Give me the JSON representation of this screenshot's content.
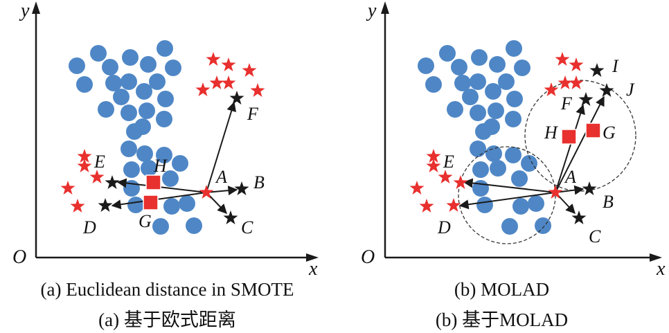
{
  "panels": [
    {
      "axis_y": "y",
      "axis_x": "x",
      "origin": "O",
      "labels": {
        "A": "A",
        "B": "B",
        "C": "C",
        "D": "D",
        "E": "E",
        "F": "F",
        "G": "G",
        "H": "H"
      },
      "caption_en": "(a) Euclidean distance in SMOTE",
      "caption_zh": "(a) 基于欧式距离"
    },
    {
      "axis_y": "y",
      "axis_x": "x",
      "origin": "O",
      "labels": {
        "A": "A",
        "B": "B",
        "C": "C",
        "D": "D",
        "E": "E",
        "F": "F",
        "G": "G",
        "H": "H",
        "I": "I",
        "J": "J"
      },
      "caption_en": "(b) MOLAD",
      "caption_zh": "(b) 基于MOLAD"
    }
  ],
  "colors": {
    "majority_circle": "#4f87c6",
    "minority_star": "#e8302e",
    "neighbor_star": "#1a1a1a",
    "synthetic_square": "#e8302e",
    "axis": "#1a1a1a"
  }
}
